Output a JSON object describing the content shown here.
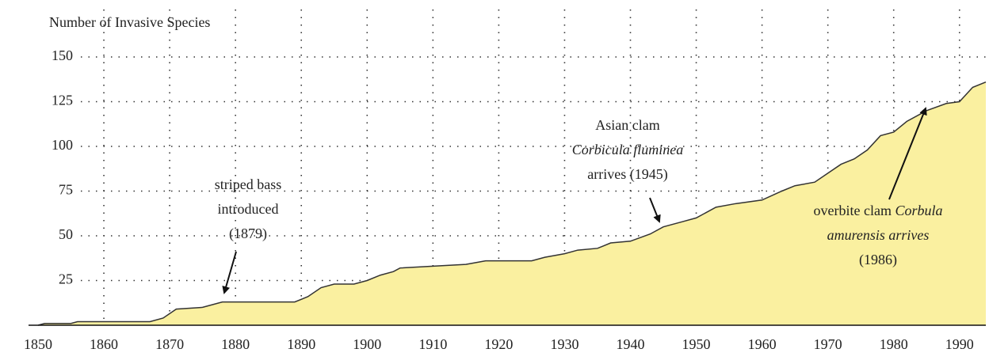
{
  "chart_data": {
    "type": "area",
    "title": "Number of Invasive Species",
    "x": [
      1850,
      1851,
      1855,
      1856,
      1867,
      1869,
      1871,
      1875,
      1878,
      1889,
      1891,
      1893,
      1895,
      1898,
      1900,
      1902,
      1904,
      1905,
      1910,
      1915,
      1918,
      1925,
      1927,
      1930,
      1932,
      1935,
      1937,
      1940,
      1943,
      1945,
      1948,
      1950,
      1953,
      1956,
      1960,
      1963,
      1965,
      1968,
      1970,
      1972,
      1974,
      1976,
      1978,
      1980,
      1982,
      1985,
      1988,
      1990,
      1992,
      1994
    ],
    "values": [
      0,
      1,
      1,
      2,
      2,
      4,
      9,
      10,
      13,
      13,
      16,
      21,
      23,
      23,
      25,
      28,
      30,
      32,
      33,
      34,
      36,
      36,
      38,
      40,
      42,
      43,
      46,
      47,
      51,
      55,
      58,
      60,
      66,
      68,
      70,
      75,
      78,
      80,
      85,
      90,
      93,
      98,
      106,
      108,
      114,
      120,
      124,
      125,
      133,
      136
    ],
    "color": "#faf0a0",
    "line_color": "#333333",
    "xlim": [
      1850,
      1994
    ],
    "xticks": [
      1850,
      1860,
      1870,
      1880,
      1890,
      1900,
      1910,
      1920,
      1930,
      1940,
      1950,
      1960,
      1970,
      1980,
      1990
    ],
    "ylim": [
      0,
      155
    ],
    "yticks": [
      25,
      50,
      75,
      100,
      125,
      150
    ],
    "grid": true,
    "annotations": [
      {
        "lines": [
          [
            {
              "text": "striped bass"
            }
          ],
          [
            {
              "text": "introduced"
            }
          ],
          [
            {
              "text": "(1879)"
            }
          ]
        ]
      },
      {
        "lines": [
          [
            {
              "text": "Asian clam"
            }
          ],
          [
            {
              "text": "Corbicula fluminea",
              "italic": true
            }
          ],
          [
            {
              "text": "arrives (1945)"
            }
          ]
        ]
      },
      {
        "lines": [
          [
            {
              "text": "overbite clam "
            },
            {
              "text": "Corbula",
              "italic": true
            }
          ],
          [
            {
              "text": "amurensis arrives",
              "italic": true
            }
          ],
          [
            {
              "text": "(1986)"
            }
          ]
        ]
      }
    ]
  }
}
